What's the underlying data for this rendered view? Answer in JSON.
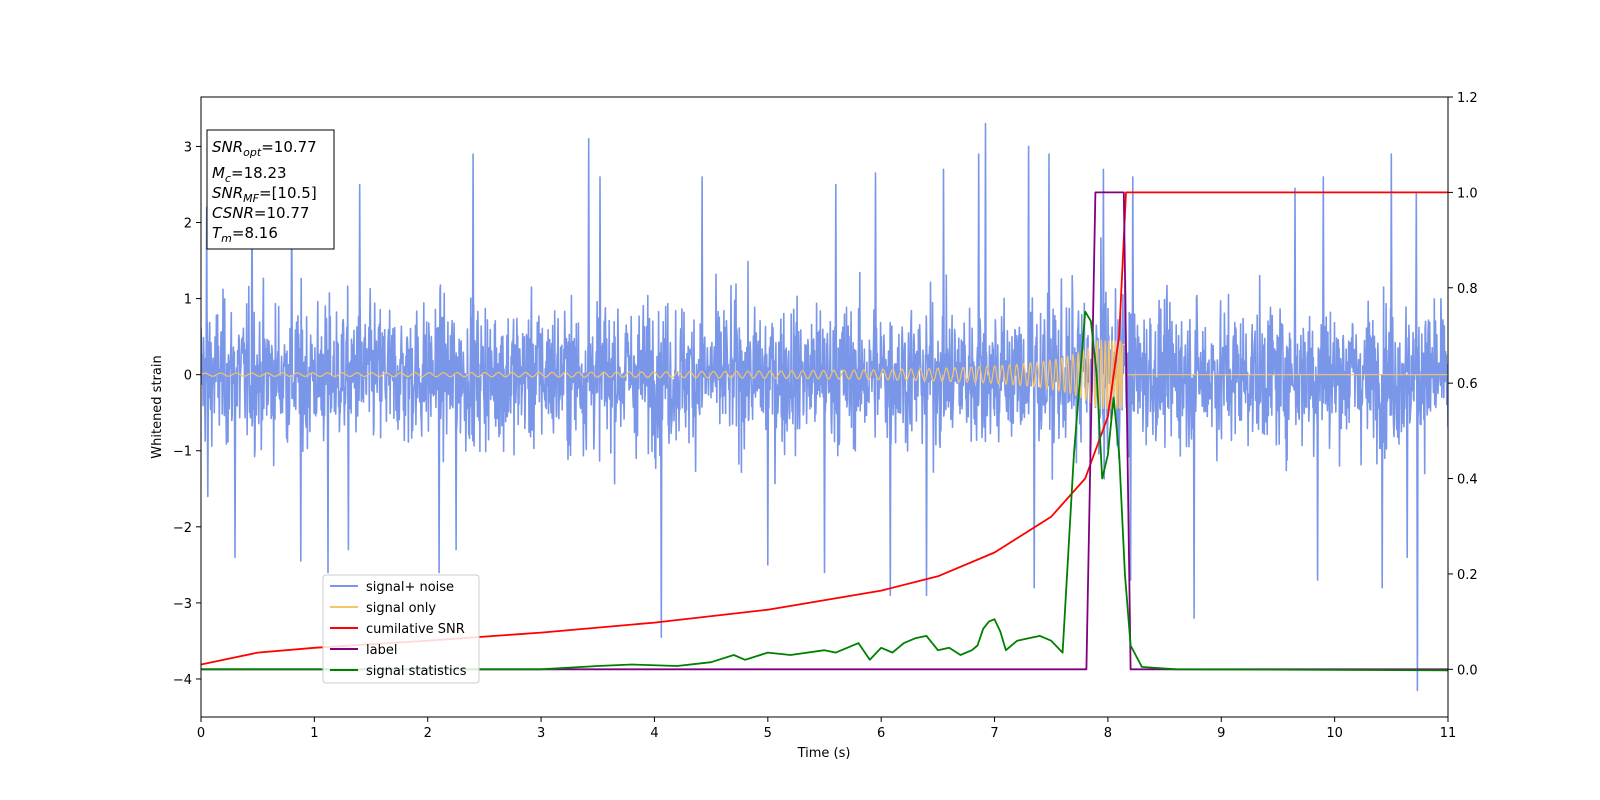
{
  "chart_data": {
    "type": "line",
    "title": "",
    "xlabel": "Time (s)",
    "ylabel": "Whitened strain",
    "xlim": [
      0,
      11
    ],
    "ylim_left": [
      -4.5,
      3.65
    ],
    "ylim_right": [
      -0.1,
      1.2
    ],
    "x_ticks": [
      "0",
      "1",
      "2",
      "3",
      "4",
      "5",
      "6",
      "7",
      "8",
      "9",
      "10",
      "11"
    ],
    "y_left_ticks": [
      "3",
      "2",
      "1",
      "0",
      "−1",
      "−2",
      "−3",
      "−4"
    ],
    "y_left_tick_values": [
      3,
      2,
      1,
      0,
      -1,
      -2,
      -3,
      -4
    ],
    "y_right_ticks": [
      "1.2",
      "1.0",
      "0.8",
      "0.6",
      "0.4",
      "0.2",
      "0.0"
    ],
    "y_right_tick_values": [
      1.2,
      1.0,
      0.8,
      0.6,
      0.4,
      0.2,
      0.0
    ],
    "grid": false,
    "legend_placement": "lower-left",
    "annotation": {
      "lines": [
        {
          "main": "SNR",
          "sub": "opt",
          "rest": "=10.77"
        },
        {
          "main": "M",
          "sub": "c",
          "rest": "=18.23"
        },
        {
          "main": "SNR",
          "sub": "MF",
          "rest": "=[10.5]"
        },
        {
          "main": "CSNR",
          "sub": "",
          "rest": "=10.77"
        },
        {
          "main": "T",
          "sub": "m",
          "rest": "=8.16"
        }
      ]
    },
    "series": [
      {
        "name": "signal+ noise",
        "axis": "left",
        "color": "#7a96e8",
        "description_values": {
          "noise_sigma": 0.9,
          "approx_range": [
            -4.15,
            3.3
          ]
        },
        "peaks": [
          [
            0.05,
            2.2
          ],
          [
            0.45,
            2.3
          ],
          [
            0.8,
            2.4
          ],
          [
            1.4,
            2.5
          ],
          [
            2.4,
            2.9
          ],
          [
            3.42,
            3.1
          ],
          [
            3.52,
            2.6
          ],
          [
            4.42,
            2.6
          ],
          [
            5.6,
            2.5
          ],
          [
            5.95,
            2.65
          ],
          [
            6.55,
            2.7
          ],
          [
            6.92,
            3.3
          ],
          [
            6.86,
            2.9
          ],
          [
            7.3,
            3.0
          ],
          [
            7.48,
            2.9
          ],
          [
            7.96,
            2.7
          ],
          [
            8.22,
            2.6
          ],
          [
            9.65,
            2.45
          ],
          [
            9.9,
            2.6
          ],
          [
            10.5,
            2.9
          ],
          [
            10.72,
            2.4
          ]
        ],
        "troughs": [
          [
            0.06,
            -1.6
          ],
          [
            0.3,
            -2.4
          ],
          [
            0.88,
            -2.45
          ],
          [
            1.12,
            -2.6
          ],
          [
            1.3,
            -2.3
          ],
          [
            2.1,
            -2.6
          ],
          [
            2.25,
            -2.3
          ],
          [
            4.06,
            -3.45
          ],
          [
            5.0,
            -2.5
          ],
          [
            5.5,
            -2.6
          ],
          [
            6.08,
            -2.9
          ],
          [
            6.4,
            -2.9
          ],
          [
            7.35,
            -2.8
          ],
          [
            8.2,
            -2.7
          ],
          [
            8.76,
            -3.2
          ],
          [
            9.85,
            -2.7
          ],
          [
            10.42,
            -2.8
          ],
          [
            10.64,
            -2.4
          ],
          [
            10.73,
            -4.15
          ]
        ]
      },
      {
        "name": "signal only",
        "axis": "left",
        "color": "#f5c36c",
        "chirp": {
          "amplitude_start": 0.02,
          "amplitude_peak": 0.45,
          "merger_time": 8.16,
          "f_start": 7.2
        }
      },
      {
        "name": "cumilative SNR",
        "axis": "right",
        "color": "#ff0000",
        "x": [
          0,
          0.5,
          1,
          2,
          3,
          4,
          5,
          6,
          6.5,
          7,
          7.5,
          7.8,
          8.0,
          8.1,
          8.16,
          8.2,
          11
        ],
        "y": [
          0.01,
          0.035,
          0.045,
          0.06,
          0.077,
          0.098,
          0.125,
          0.165,
          0.195,
          0.245,
          0.32,
          0.4,
          0.53,
          0.7,
          1.0,
          1.0,
          1.0
        ]
      },
      {
        "name": "label",
        "axis": "right",
        "color": "#800080",
        "x": [
          0,
          7.81,
          7.89,
          8.14,
          8.2,
          11
        ],
        "y": [
          0.0,
          0.0,
          1.0,
          1.0,
          0.0,
          0.0
        ]
      },
      {
        "name": "signal statistics",
        "axis": "right",
        "color": "#008000",
        "x": [
          0,
          2.0,
          3.0,
          3.5,
          3.8,
          4.2,
          4.5,
          4.7,
          4.8,
          5.0,
          5.2,
          5.5,
          5.6,
          5.8,
          5.9,
          6.0,
          6.1,
          6.2,
          6.3,
          6.4,
          6.5,
          6.6,
          6.7,
          6.8,
          6.85,
          6.9,
          6.95,
          7.0,
          7.05,
          7.1,
          7.2,
          7.3,
          7.4,
          7.5,
          7.6,
          7.7,
          7.8,
          7.85,
          7.9,
          7.95,
          8.0,
          8.05,
          8.1,
          8.15,
          8.2,
          8.3,
          8.6,
          11
        ],
        "y": [
          0.0,
          0.0,
          0.0,
          0.007,
          0.01,
          0.007,
          0.015,
          0.03,
          0.02,
          0.035,
          0.03,
          0.04,
          0.035,
          0.055,
          0.02,
          0.045,
          0.035,
          0.055,
          0.065,
          0.07,
          0.04,
          0.045,
          0.03,
          0.04,
          0.05,
          0.085,
          0.1,
          0.105,
          0.08,
          0.04,
          0.06,
          0.065,
          0.07,
          0.06,
          0.035,
          0.45,
          0.75,
          0.73,
          0.62,
          0.4,
          0.45,
          0.57,
          0.45,
          0.2,
          0.05,
          0.005,
          0.0,
          -0.002
        ]
      }
    ]
  }
}
